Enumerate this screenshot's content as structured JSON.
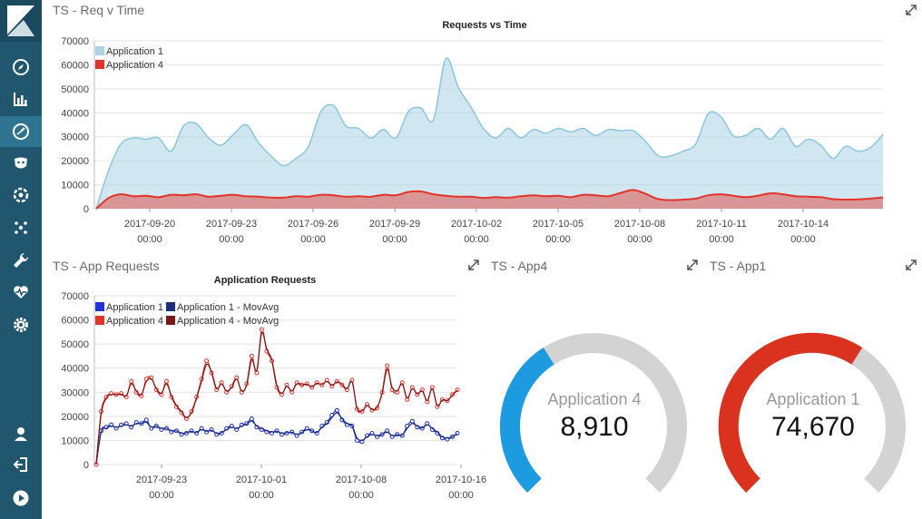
{
  "colors": {
    "sidebar": "#20566e",
    "app1": "#a9d4e5",
    "app4": "#e2342a",
    "app1_dark": "#1f2fbf",
    "app1_mov": "#1b2f7a",
    "app4_mov": "#7a1717",
    "gauge_blue": "#1c9be0",
    "gauge_red": "#d9321f",
    "gauge_bg": "#d3d3d3"
  },
  "sidebar": {
    "items": [
      {
        "icon": "compass-icon"
      },
      {
        "icon": "bar-chart-icon"
      },
      {
        "icon": "dashboard-icon"
      },
      {
        "icon": "timelion-icon"
      },
      {
        "icon": "dev-tools-icon"
      },
      {
        "icon": "ml-icon"
      },
      {
        "icon": "wrench-icon"
      },
      {
        "icon": "heartbeat-icon"
      },
      {
        "icon": "gear-icon"
      }
    ],
    "bottom": [
      {
        "icon": "user-icon"
      },
      {
        "icon": "logout-icon"
      },
      {
        "icon": "collapse-icon"
      }
    ]
  },
  "panels": {
    "req_v_time": {
      "title": "TS - Req v Time"
    },
    "app_requests": {
      "title": "TS - App Requests"
    },
    "app4": {
      "title": "TS - App4",
      "label": "Application 4",
      "value": "8,910",
      "fill": 0.38
    },
    "app1": {
      "title": "TS - App1",
      "label": "Application 1",
      "value": "74,670",
      "fill": 0.62
    }
  },
  "chart_data": [
    {
      "type": "area",
      "title": "Requests vs Time",
      "x_ticks": [
        "2017-09-20",
        "2017-09-23",
        "2017-09-26",
        "2017-09-29",
        "2017-10-02",
        "2017-10-05",
        "2017-10-08",
        "2017-10-11",
        "2017-10-14"
      ],
      "x_tick_sub": "00:00",
      "y_ticks": [
        "0",
        "10000",
        "20000",
        "30000",
        "40000",
        "50000",
        "60000",
        "70000"
      ],
      "ylim": [
        0,
        70000
      ],
      "legend": "top-left",
      "grid": true,
      "series": [
        {
          "name": "Application 1",
          "values": [
            0,
            16000,
            27000,
            29500,
            29000,
            29500,
            24000,
            34500,
            35500,
            29500,
            26500,
            31000,
            35000,
            27500,
            22000,
            18000,
            21000,
            26000,
            40500,
            43000,
            34500,
            33500,
            29500,
            33000,
            29500,
            40500,
            42000,
            37000,
            62500,
            50500,
            42500,
            33500,
            29500,
            33500,
            29500,
            33000,
            31500,
            33500,
            32000,
            33500,
            30500,
            33000,
            32500,
            32500,
            28000,
            22000,
            22000,
            24000,
            27000,
            39500,
            38500,
            30500,
            30500,
            33500,
            29000,
            33500,
            26000,
            29000,
            26500,
            21000,
            26000,
            24000,
            25500,
            31000
          ]
        },
        {
          "name": "Application 4",
          "values": [
            0,
            4500,
            6000,
            5200,
            5400,
            4800,
            5800,
            5600,
            6000,
            5000,
            5400,
            5800,
            5200,
            5000,
            4600,
            4600,
            5200,
            5000,
            5800,
            5600,
            5000,
            5200,
            5000,
            5800,
            5600,
            7000,
            7200,
            6000,
            5400,
            5000,
            5000,
            4500,
            4800,
            4600,
            5200,
            5600,
            5200,
            5400,
            4800,
            5800,
            5600,
            5200,
            6600,
            7800,
            6200,
            4000,
            3600,
            3800,
            4200,
            5600,
            6000,
            5400,
            4800,
            5400,
            6400,
            6000,
            5200,
            5000,
            4800,
            4000,
            3800,
            3900,
            4200,
            4700
          ]
        }
      ]
    },
    {
      "type": "line",
      "title": "Application Requests",
      "x_ticks": [
        "2017-09-23",
        "2017-10-01",
        "2017-10-08",
        "2017-10-16"
      ],
      "x_tick_sub": "00:00",
      "y_ticks": [
        "0",
        "10000",
        "20000",
        "30000",
        "40000",
        "50000",
        "60000",
        "70000"
      ],
      "ylim": [
        0,
        70000
      ],
      "legend": "top-left",
      "grid": true,
      "series": [
        {
          "name": "Application 1",
          "values": [
            0,
            14000,
            15500,
            16500,
            15000,
            16500,
            17000,
            15500,
            17500,
            17000,
            18500,
            15000,
            16000,
            14500,
            15000,
            13500,
            14000,
            12500,
            13000,
            14000,
            13000,
            15000,
            13500,
            14500,
            12500,
            13000,
            15000,
            16000,
            14500,
            16500,
            17000,
            19000,
            15500,
            14500,
            13500,
            13000,
            14000,
            12500,
            13000,
            13500,
            12000,
            13500,
            15000,
            14000,
            13000,
            16000,
            17500,
            20500,
            22500,
            18500,
            16500,
            16000,
            10000,
            9500,
            12000,
            13000,
            11500,
            12500,
            14000,
            11500,
            12500,
            12000,
            16000,
            18000,
            15500,
            15000,
            17000,
            14500,
            13000,
            11000,
            10500,
            11500,
            13000
          ]
        },
        {
          "name": "Application 1 - MovAvg",
          "values": [
            0,
            13500,
            15000,
            16000,
            15500,
            16000,
            16500,
            16000,
            17000,
            17000,
            17500,
            15500,
            16000,
            15000,
            15000,
            14000,
            14000,
            13000,
            13200,
            13800,
            13300,
            14500,
            13800,
            14200,
            13000,
            13200,
            14500,
            15500,
            15000,
            16000,
            16800,
            18000,
            16000,
            15000,
            14000,
            13500,
            13800,
            13000,
            13200,
            13400,
            12500,
            13300,
            14500,
            14000,
            13300,
            15500,
            17000,
            19500,
            21500,
            19000,
            17000,
            16200,
            11000,
            10000,
            11500,
            12500,
            12000,
            12500,
            13500,
            12000,
            12400,
            12200,
            15000,
            17000,
            16000,
            15200,
            16500,
            15000,
            13500,
            11500,
            11000,
            11500,
            12800
          ]
        },
        {
          "name": "Application 4",
          "values": [
            0,
            22000,
            28000,
            29500,
            29000,
            29500,
            28000,
            34500,
            30000,
            28500,
            35500,
            36000,
            31000,
            29000,
            34500,
            28000,
            24000,
            21500,
            19000,
            22000,
            28000,
            35500,
            43000,
            38000,
            31000,
            34000,
            30000,
            32500,
            36000,
            30000,
            33500,
            45000,
            38000,
            56000,
            47000,
            43000,
            32000,
            29000,
            33000,
            30000,
            34000,
            33000,
            33500,
            32000,
            34000,
            33000,
            35000,
            32500,
            34500,
            33000,
            31000,
            35000,
            23000,
            22000,
            25000,
            22500,
            23500,
            30000,
            41000,
            31000,
            30000,
            34000,
            27000,
            32000,
            29000,
            31000,
            26000,
            32000,
            24000,
            27000,
            26500,
            29000,
            31000
          ]
        },
        {
          "name": "Application 4 - MovAvg",
          "values": [
            0,
            21000,
            27500,
            29000,
            29000,
            29200,
            28500,
            33500,
            30500,
            29000,
            34500,
            35500,
            31500,
            29500,
            33500,
            28500,
            24500,
            22000,
            19500,
            21500,
            27500,
            34500,
            41500,
            38500,
            31500,
            33500,
            30500,
            32000,
            35500,
            30500,
            33000,
            43500,
            39000,
            54500,
            48000,
            43500,
            33000,
            29500,
            32500,
            30500,
            33500,
            33000,
            33300,
            32300,
            33700,
            33200,
            34500,
            32800,
            34300,
            33200,
            31500,
            34300,
            23500,
            22200,
            24500,
            22800,
            23800,
            29500,
            39500,
            32000,
            30500,
            33500,
            27500,
            31500,
            29300,
            30500,
            26500,
            31500,
            24500,
            26800,
            26500,
            28800,
            30800
          ]
        }
      ]
    }
  ]
}
